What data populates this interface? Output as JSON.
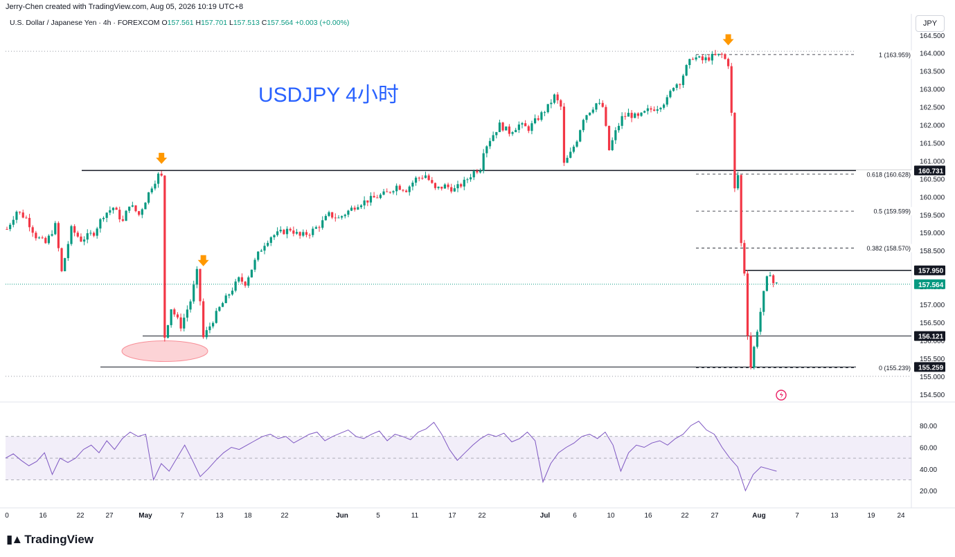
{
  "header": {
    "credit": "Jerry-Chen created with TradingView.com, Aug 05, 2026 10:19 UTC+8",
    "symbol": "U.S. Dollar / Japanese Yen · 4h · FOREXCOM",
    "open_label": "O",
    "open": "157.561",
    "high_label": "H",
    "high": "157.701",
    "low_label": "L",
    "low": "157.513",
    "close_label": "C",
    "close": "157.564",
    "change": "+0.003 (+0.00%)",
    "currency": "JPY"
  },
  "brand": {
    "name": "TradingView"
  },
  "colors": {
    "up": "#089981",
    "down": "#f23645",
    "rsi": "#7e57c2",
    "annotation": "#2962ff",
    "marker": "#ff9800"
  },
  "chart_data": [
    {
      "type": "candlestick",
      "title": "USDJPY 4小时",
      "ylim": [
        154.4,
        164.65
      ],
      "y_ticks": [
        "154.500",
        "155.000",
        "155.500",
        "156.000",
        "156.500",
        "157.000",
        "157.500",
        "158.000",
        "158.500",
        "159.000",
        "159.500",
        "160.000",
        "160.500",
        "161.000",
        "161.500",
        "162.000",
        "162.500",
        "163.000",
        "163.500",
        "164.000",
        "164.500"
      ],
      "x_ticks": [
        "0",
        "16",
        "22",
        "27",
        "May",
        "7",
        "13",
        "18",
        "22",
        "Jun",
        "5",
        "11",
        "17",
        "22",
        "Jul",
        "6",
        "10",
        "16",
        "22",
        "27",
        "Aug",
        "7",
        "13",
        "19",
        "24"
      ],
      "price_path": [
        [
          0,
          159.1
        ],
        [
          3,
          159.6
        ],
        [
          6,
          159.4
        ],
        [
          9,
          158.9
        ],
        [
          12,
          158.7
        ],
        [
          15,
          159.2
        ],
        [
          17,
          157.9
        ],
        [
          20,
          159.1
        ],
        [
          23,
          158.8
        ],
        [
          27,
          159.0
        ],
        [
          30,
          159.5
        ],
        [
          33,
          159.7
        ],
        [
          36,
          159.3
        ],
        [
          38,
          159.8
        ],
        [
          41,
          159.5
        ],
        [
          43,
          159.9
        ],
        [
          45,
          160.3
        ],
        [
          47,
          160.6
        ],
        [
          48,
          160.55
        ],
        [
          48.5,
          155.9
        ],
        [
          51,
          156.9
        ],
        [
          54,
          156.4
        ],
        [
          57,
          157.1
        ],
        [
          59,
          157.9
        ],
        [
          60,
          157.1
        ],
        [
          60.5,
          156.0
        ],
        [
          63,
          156.4
        ],
        [
          66,
          156.9
        ],
        [
          69,
          157.3
        ],
        [
          72,
          157.7
        ],
        [
          74,
          157.6
        ],
        [
          76,
          158.0
        ],
        [
          78,
          158.4
        ],
        [
          80,
          158.7
        ],
        [
          82,
          158.9
        ],
        [
          85,
          159.0
        ],
        [
          88,
          159.1
        ],
        [
          91,
          158.9
        ],
        [
          94,
          159.0
        ],
        [
          97,
          159.2
        ],
        [
          100,
          159.5
        ],
        [
          103,
          159.4
        ],
        [
          106,
          159.6
        ],
        [
          109,
          159.8
        ],
        [
          112,
          159.9
        ],
        [
          115,
          160.0
        ],
        [
          118,
          160.1
        ],
        [
          121,
          160.3
        ],
        [
          124,
          160.2
        ],
        [
          127,
          160.5
        ],
        [
          130,
          160.6
        ],
        [
          133,
          160.2
        ],
        [
          136,
          160.3
        ],
        [
          139,
          160.2
        ],
        [
          142,
          160.4
        ],
        [
          145,
          160.7
        ],
        [
          147,
          160.8
        ],
        [
          148,
          161.3
        ],
        [
          150,
          161.6
        ],
        [
          153,
          162.0
        ],
        [
          156,
          161.8
        ],
        [
          159,
          162.0
        ],
        [
          162,
          161.9
        ],
        [
          165,
          162.2
        ],
        [
          168,
          162.5
        ],
        [
          170,
          162.8
        ],
        [
          172,
          162.5
        ],
        [
          173,
          160.9
        ],
        [
          175,
          161.2
        ],
        [
          177,
          161.6
        ],
        [
          179,
          162.2
        ],
        [
          181,
          162.4
        ],
        [
          183,
          162.6
        ],
        [
          185,
          162.5
        ],
        [
          187,
          161.3
        ],
        [
          189,
          161.8
        ],
        [
          191,
          162.2
        ],
        [
          193,
          162.3
        ],
        [
          196,
          162.2
        ],
        [
          199,
          162.4
        ],
        [
          202,
          162.5
        ],
        [
          205,
          162.7
        ],
        [
          207,
          163.1
        ],
        [
          209,
          163.2
        ],
        [
          211,
          163.6
        ],
        [
          213,
          163.9
        ],
        [
          216,
          163.8
        ],
        [
          219,
          163.9
        ],
        [
          222,
          163.95
        ],
        [
          224,
          163.7
        ],
        [
          225,
          162.3
        ],
        [
          226,
          160.2
        ],
        [
          227,
          160.6
        ],
        [
          228,
          158.7
        ],
        [
          229,
          157.9
        ],
        [
          230,
          156.2
        ],
        [
          231,
          155.26
        ],
        [
          232,
          155.8
        ],
        [
          233,
          156.3
        ],
        [
          234,
          156.8
        ],
        [
          235,
          157.3
        ],
        [
          236,
          157.7
        ],
        [
          237,
          157.9
        ],
        [
          238,
          157.6
        ],
        [
          239,
          157.564
        ]
      ],
      "levels": [
        {
          "price": 160.731,
          "label": "160.731",
          "style": "solid"
        },
        {
          "price": 157.95,
          "label": "157.950",
          "style": "solid"
        },
        {
          "price": 156.121,
          "label": "156.121",
          "style": "solid"
        },
        {
          "price": 155.259,
          "label": "155.259",
          "style": "solid"
        },
        {
          "price": 157.564,
          "label": "157.564",
          "style": "current"
        }
      ],
      "fibonacci": [
        {
          "price": 163.959,
          "label": "1 (163.959)"
        },
        {
          "price": 160.628,
          "label": "0.618 (160.628)"
        },
        {
          "price": 159.599,
          "label": "0.5 (159.599)"
        },
        {
          "price": 158.57,
          "label": "0.382 (158.570)"
        },
        {
          "price": 155.239,
          "label": "0 (155.239)"
        }
      ],
      "markers": [
        {
          "candle": 48,
          "price": 160.8
        },
        {
          "candle": 61,
          "price": 157.95
        },
        {
          "candle": 224,
          "price": 164.1
        }
      ]
    },
    {
      "type": "line",
      "series": [
        {
          "values": [
            50,
            54,
            48,
            43,
            47,
            55,
            35,
            50,
            46,
            50,
            58,
            62,
            55,
            66,
            58,
            68,
            74,
            70,
            72,
            30,
            45,
            38,
            50,
            62,
            48,
            33,
            40,
            48,
            55,
            60,
            58,
            62,
            66,
            70,
            72,
            68,
            70,
            64,
            68,
            72,
            74,
            66,
            70,
            73,
            76,
            70,
            68,
            72,
            75,
            66,
            72,
            70,
            67,
            74,
            77,
            83,
            72,
            58,
            48,
            55,
            62,
            68,
            72,
            70,
            73,
            65,
            68,
            74,
            66,
            28,
            45,
            55,
            60,
            64,
            70,
            72,
            68,
            74,
            62,
            38,
            55,
            62,
            60,
            64,
            66,
            62,
            68,
            72,
            80,
            84,
            76,
            72,
            60,
            50,
            42,
            20,
            35,
            42,
            40,
            38
          ]
        }
      ],
      "ylim": [
        8,
        96
      ],
      "y_ticks": [
        "20.00",
        "40.00",
        "60.00",
        "80.00"
      ],
      "band": [
        30,
        70
      ],
      "midline": 50
    }
  ]
}
